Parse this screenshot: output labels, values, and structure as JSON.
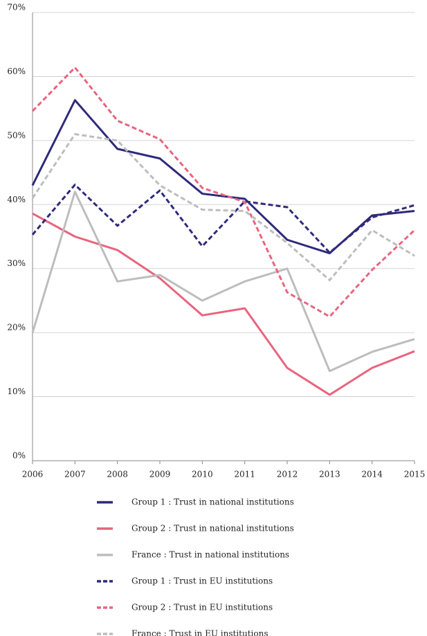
{
  "chart_data": {
    "type": "line",
    "x": [
      2006,
      2007,
      2008,
      2009,
      2010,
      2011,
      2012,
      2013,
      2014,
      2015
    ],
    "xlim": [
      2006,
      2015
    ],
    "xticks": [
      2006,
      2007,
      2008,
      2009,
      2010,
      2011,
      2012,
      2013,
      2014,
      2015
    ],
    "ylim": [
      0,
      70
    ],
    "yticks": [
      {
        "value": 0,
        "label": "0%"
      },
      {
        "value": 10,
        "label": "10%"
      },
      {
        "value": 20,
        "label": "20%"
      },
      {
        "value": 30,
        "label": "30%"
      },
      {
        "value": 40,
        "label": "40%"
      },
      {
        "value": 50,
        "label": "50%"
      },
      {
        "value": 60,
        "label": "60%"
      },
      {
        "value": 70,
        "label": "70%"
      }
    ],
    "grid": true,
    "legend": "bottom",
    "series": [
      {
        "name": "Group 1 : Trust in national institutions",
        "color": "#2e2a7a",
        "dashed": false,
        "values": [
          43,
          56.3,
          48.7,
          47.2,
          41.7,
          40.9,
          34.5,
          32.4,
          38.3,
          39
        ]
      },
      {
        "name": "Group 2 : Trust in national institutions",
        "color": "#e8647e",
        "dashed": false,
        "values": [
          38.6,
          35,
          32.9,
          28.5,
          22.7,
          23.8,
          14.5,
          10.3,
          14.5,
          17.1
        ]
      },
      {
        "name": "France : Trust in national institutions",
        "color": "#bdbdbd",
        "dashed": false,
        "values": [
          20,
          42,
          28,
          29,
          25,
          28,
          30,
          14,
          17,
          19
        ]
      },
      {
        "name": "Group 1 : Trust in EU institutions",
        "color": "#2e2a7a",
        "dashed": true,
        "values": [
          35.3,
          43.1,
          36.7,
          42.2,
          33.5,
          40.5,
          39.6,
          32.5,
          38,
          39.9
        ]
      },
      {
        "name": "Group 2 : Trust in EU institutions",
        "color": "#e8647e",
        "dashed": true,
        "values": [
          54.6,
          61.4,
          53.1,
          50.2,
          42.6,
          40.4,
          26.3,
          22.5,
          29.8,
          36
        ]
      },
      {
        "name": "France : Trust in EU institutions",
        "color": "#bdbdbd",
        "dashed": true,
        "values": [
          41,
          51,
          50,
          43,
          39.2,
          39,
          34,
          28.2,
          36,
          32
        ]
      }
    ]
  }
}
